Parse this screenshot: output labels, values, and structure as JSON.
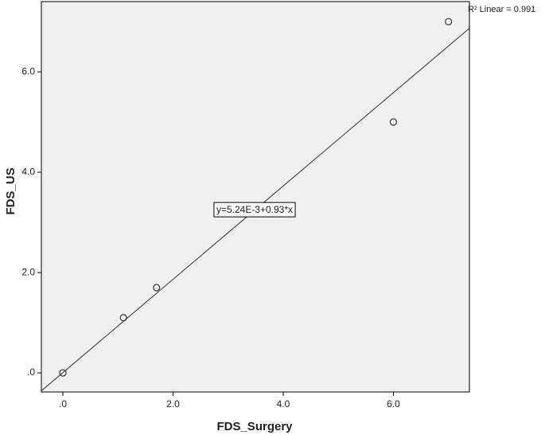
{
  "chart_data": {
    "type": "scatter",
    "xlabel": "FDS_Surgery",
    "ylabel": "FDS_US",
    "series": [
      {
        "name": "FDS_US",
        "color": "#333333",
        "x": [
          0,
          1.1,
          1.7,
          6,
          7
        ],
        "values": [
          0,
          1.1,
          1.7,
          5,
          7
        ]
      }
    ],
    "fit": {
      "intercept": 0.00524,
      "slope": 0.93,
      "color": "#333333"
    },
    "equation_label": "y=5.24E-3+0.93*x",
    "r2_label": "R² Linear = 0.991",
    "xlim": [
      -0.39,
      7.38
    ],
    "ylim": [
      -0.38,
      7.4
    ],
    "xticks": [
      {
        "value": 0,
        "label": ".0"
      },
      {
        "value": 2,
        "label": "2.0"
      },
      {
        "value": 4,
        "label": "4.0"
      },
      {
        "value": 6,
        "label": "6.0"
      }
    ],
    "yticks": [
      {
        "value": 0,
        "label": ".0"
      },
      {
        "value": 2,
        "label": "2.0"
      },
      {
        "value": 4,
        "label": "4.0"
      },
      {
        "value": 6,
        "label": "6.0"
      }
    ],
    "grid": false
  }
}
